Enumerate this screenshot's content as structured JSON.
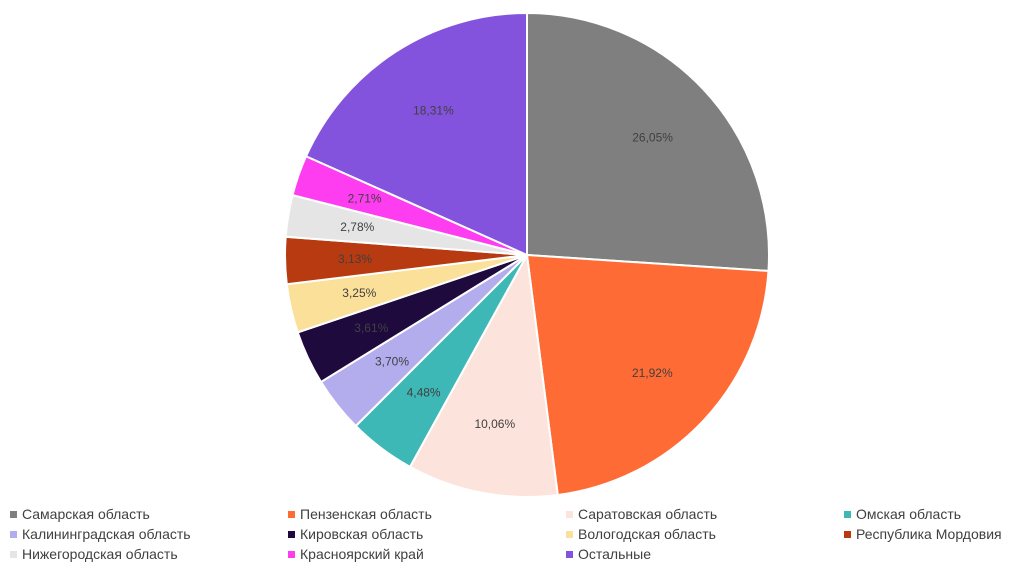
{
  "chart_data": {
    "type": "pie",
    "title": "",
    "legend_position": "bottom",
    "start_angle": "12 o'clock",
    "direction": "clockwise",
    "slices": [
      {
        "name": "Самарская область",
        "value": 26.05,
        "label": "26,05%",
        "color": "#7F7F7F"
      },
      {
        "name": "Пензенская область",
        "value": 21.92,
        "label": "21,92%",
        "color": "#FF6B35"
      },
      {
        "name": "Саратовская область",
        "value": 10.06,
        "label": "10,06%",
        "color": "#FCE4DC"
      },
      {
        "name": "Омская область",
        "value": 4.48,
        "label": "4,48%",
        "color": "#3DB8B6"
      },
      {
        "name": "Калининградская область",
        "value": 3.7,
        "label": "3,70%",
        "color": "#B4ADED"
      },
      {
        "name": "Кировская область",
        "value": 3.61,
        "label": "3,61%",
        "color": "#1F0A3D"
      },
      {
        "name": "Вологодская область",
        "value": 3.25,
        "label": "3,25%",
        "color": "#FBE09A"
      },
      {
        "name": "Республика Мордовия",
        "value": 3.13,
        "label": "3,13%",
        "color": "#B83A10"
      },
      {
        "name": "Нижегородская область",
        "value": 2.78,
        "label": "2,78%",
        "color": "#E5E5E5"
      },
      {
        "name": "Красноярский край",
        "value": 2.71,
        "label": "2,71%",
        "color": "#FF3DF0"
      },
      {
        "name": "Остальные",
        "value": 18.31,
        "label": "18,31%",
        "color": "#8453DD"
      }
    ]
  }
}
